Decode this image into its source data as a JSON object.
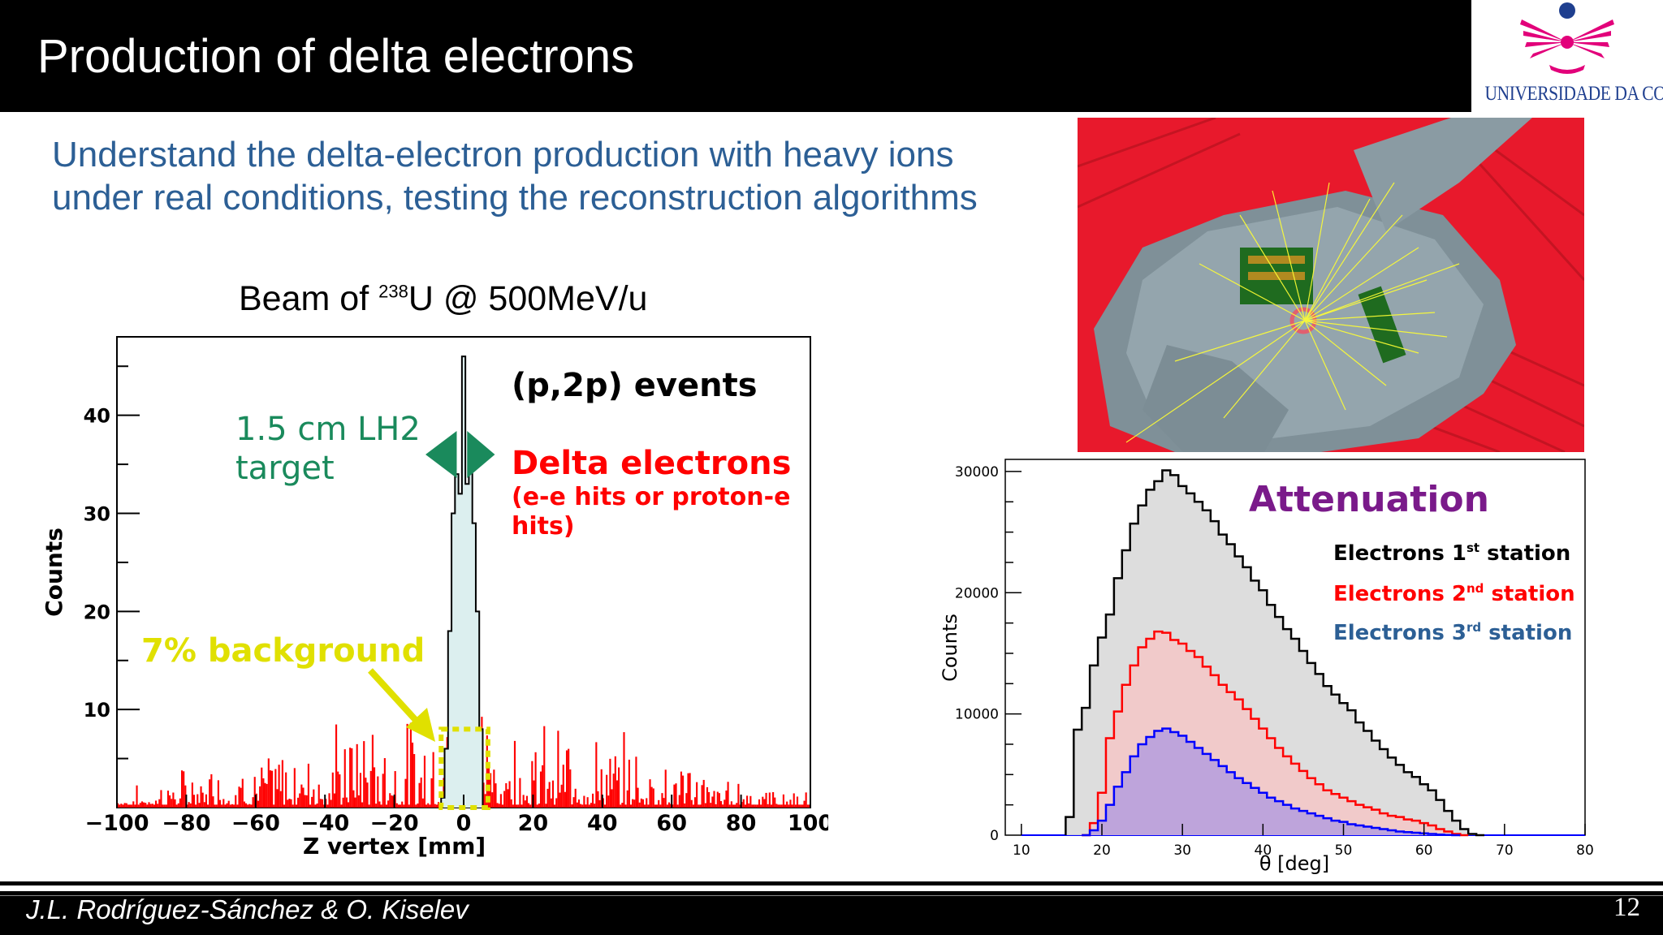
{
  "slide": {
    "title": "Production of delta electrons",
    "subtitle_line1": "Understand the delta-electron production with heavy ions",
    "subtitle_line2": "under real conditions, testing the reconstruction algorithms",
    "beam_prefix": "Beam of ",
    "beam_superscript": "238",
    "beam_suffix": "U @ 500MeV/u",
    "logo_text": "UNIVERSIDADE DA CORUÑA",
    "footer_author": "J.L. Rodríguez-Sánchez & O. Kiselev",
    "page_number": "12",
    "colors": {
      "title_bar": "#000000",
      "subtitle": "#2c5f95",
      "logo_magenta": "#e2007a",
      "logo_blue": "#1f3f8f"
    }
  },
  "chart_data": [
    {
      "type": "histogram",
      "xlabel": "Z vertex [mm]",
      "ylabel": "Counts",
      "xlim": [
        -100,
        100
      ],
      "ylim": [
        0,
        48
      ],
      "x_ticks": [
        -100,
        -80,
        -60,
        -40,
        -20,
        0,
        20,
        40,
        60,
        80,
        100
      ],
      "x_tick_labels": [
        "−100",
        "−80",
        "−60",
        "−40",
        "−20",
        "0",
        "20",
        "40",
        "60",
        "80",
        "100"
      ],
      "y_ticks": [
        10,
        20,
        30,
        40
      ],
      "y_tick_labels": [
        "10",
        "20",
        "30",
        "40"
      ],
      "grid": false,
      "series": [
        {
          "name": "(p,2p) events",
          "color": "#000000",
          "fill": "#dcefef",
          "x": [
            -6,
            -5,
            -4,
            -3,
            -2,
            -1,
            0,
            1,
            2,
            3,
            4,
            5
          ],
          "values": [
            1,
            6,
            18,
            30,
            34,
            32,
            46,
            33,
            35,
            29,
            20,
            8
          ]
        },
        {
          "name": "Delta electrons",
          "color": "#ff0000",
          "x": [
            -100,
            -90,
            -80,
            -70,
            -60,
            -50,
            -40,
            -30,
            -20,
            -10,
            0,
            10,
            20,
            30,
            40,
            50,
            60,
            70,
            80,
            90,
            100
          ],
          "values": [
            1,
            2,
            3,
            4,
            4,
            5,
            6,
            7,
            6,
            7,
            8,
            7,
            6,
            6,
            5,
            5,
            4,
            3,
            2,
            2,
            1
          ]
        }
      ],
      "annotations": {
        "target": "1.5 cm LH2\ntarget",
        "events": "(p,2p) events",
        "delta_title": "Delta electrons",
        "delta_sub": "(e-e hits or proton-e\nhits)",
        "background": "7% background"
      },
      "annotation_colors": {
        "target": "#1a8a5c",
        "events": "#000000",
        "delta": "#ff0000",
        "background": "#e0e000"
      }
    },
    {
      "type": "histogram",
      "title": "Attenuation",
      "title_color": "#7a1a8a",
      "xlabel": "θ [deg]",
      "ylabel": "Counts",
      "xlim": [
        8,
        80
      ],
      "ylim": [
        0,
        31000
      ],
      "x_ticks": [
        10,
        20,
        30,
        40,
        50,
        60,
        70,
        80
      ],
      "y_ticks": [
        0,
        10000,
        20000,
        30000
      ],
      "grid": false,
      "legend_position": "top-right",
      "series": [
        {
          "name": "Electrons 1st station",
          "label": "Electrons 1",
          "sup": "st",
          "tail": " station",
          "color": "#000000",
          "fill": "#d9d9d9",
          "x": [
            16,
            17,
            18,
            19,
            20,
            21,
            22,
            23,
            24,
            25,
            26,
            27,
            28,
            29,
            30,
            31,
            32,
            33,
            34,
            35,
            36,
            37,
            38,
            39,
            40,
            41,
            42,
            43,
            44,
            45,
            46,
            47,
            48,
            49,
            50,
            51,
            52,
            53,
            54,
            55,
            56,
            57,
            58,
            59,
            60,
            61,
            62,
            63,
            64,
            65,
            66,
            67
          ],
          "values": [
            1500,
            8700,
            10500,
            14000,
            16300,
            18200,
            21200,
            23500,
            25700,
            27200,
            28500,
            29200,
            30100,
            29700,
            28800,
            28200,
            27500,
            26800,
            25900,
            24800,
            24000,
            23000,
            22100,
            21000,
            20200,
            19000,
            18000,
            17000,
            16200,
            15200,
            14200,
            13300,
            12300,
            11600,
            10900,
            10300,
            9300,
            8600,
            7800,
            7100,
            6400,
            5800,
            5200,
            4800,
            4200,
            3700,
            2900,
            2000,
            1200,
            500,
            100,
            0
          ]
        },
        {
          "name": "Electrons 2nd station",
          "label": "Electrons 2",
          "sup": "nd",
          "tail": " station",
          "color": "#ff0000",
          "fill": "#f3c8c8",
          "x": [
            18,
            19,
            20,
            21,
            22,
            23,
            24,
            25,
            26,
            27,
            28,
            29,
            30,
            31,
            32,
            33,
            34,
            35,
            36,
            37,
            38,
            39,
            40,
            41,
            42,
            43,
            44,
            45,
            46,
            47,
            48,
            49,
            50,
            51,
            52,
            53,
            54,
            55,
            56,
            57,
            58,
            59,
            60,
            61,
            62,
            63,
            64,
            65
          ],
          "values": [
            0,
            1000,
            3500,
            8000,
            10200,
            12400,
            14000,
            15500,
            16200,
            16800,
            16700,
            16100,
            15800,
            15200,
            14700,
            13900,
            13200,
            12400,
            11800,
            11200,
            10400,
            9600,
            8800,
            8000,
            7200,
            6500,
            5900,
            5300,
            4700,
            4200,
            3700,
            3400,
            3100,
            2800,
            2500,
            2300,
            2100,
            1800,
            1600,
            1500,
            1300,
            1200,
            1000,
            800,
            500,
            300,
            100,
            0
          ]
        },
        {
          "name": "Electrons 3rd station",
          "label": "Electrons 3",
          "sup": "rd",
          "tail": " station",
          "color": "#0000ff",
          "fill": "#b8a0dd",
          "x": [
            18,
            19,
            20,
            21,
            22,
            23,
            24,
            25,
            26,
            27,
            28,
            29,
            30,
            31,
            32,
            33,
            34,
            35,
            36,
            37,
            38,
            39,
            40,
            41,
            42,
            43,
            44,
            45,
            46,
            47,
            48,
            49,
            50,
            51,
            52,
            53,
            54,
            55,
            56,
            57,
            58,
            59,
            60,
            61,
            62,
            63,
            64
          ],
          "values": [
            0,
            400,
            1200,
            2500,
            4000,
            5200,
            6500,
            7500,
            8100,
            8600,
            8800,
            8500,
            8200,
            7700,
            7200,
            6700,
            6200,
            5700,
            5200,
            4700,
            4300,
            3900,
            3500,
            3100,
            2800,
            2500,
            2200,
            2000,
            1800,
            1600,
            1400,
            1200,
            1100,
            900,
            800,
            700,
            600,
            500,
            400,
            300,
            250,
            200,
            150,
            100,
            50,
            20,
            0
          ],
          "legend_color": "#2c5f95"
        }
      ]
    }
  ]
}
